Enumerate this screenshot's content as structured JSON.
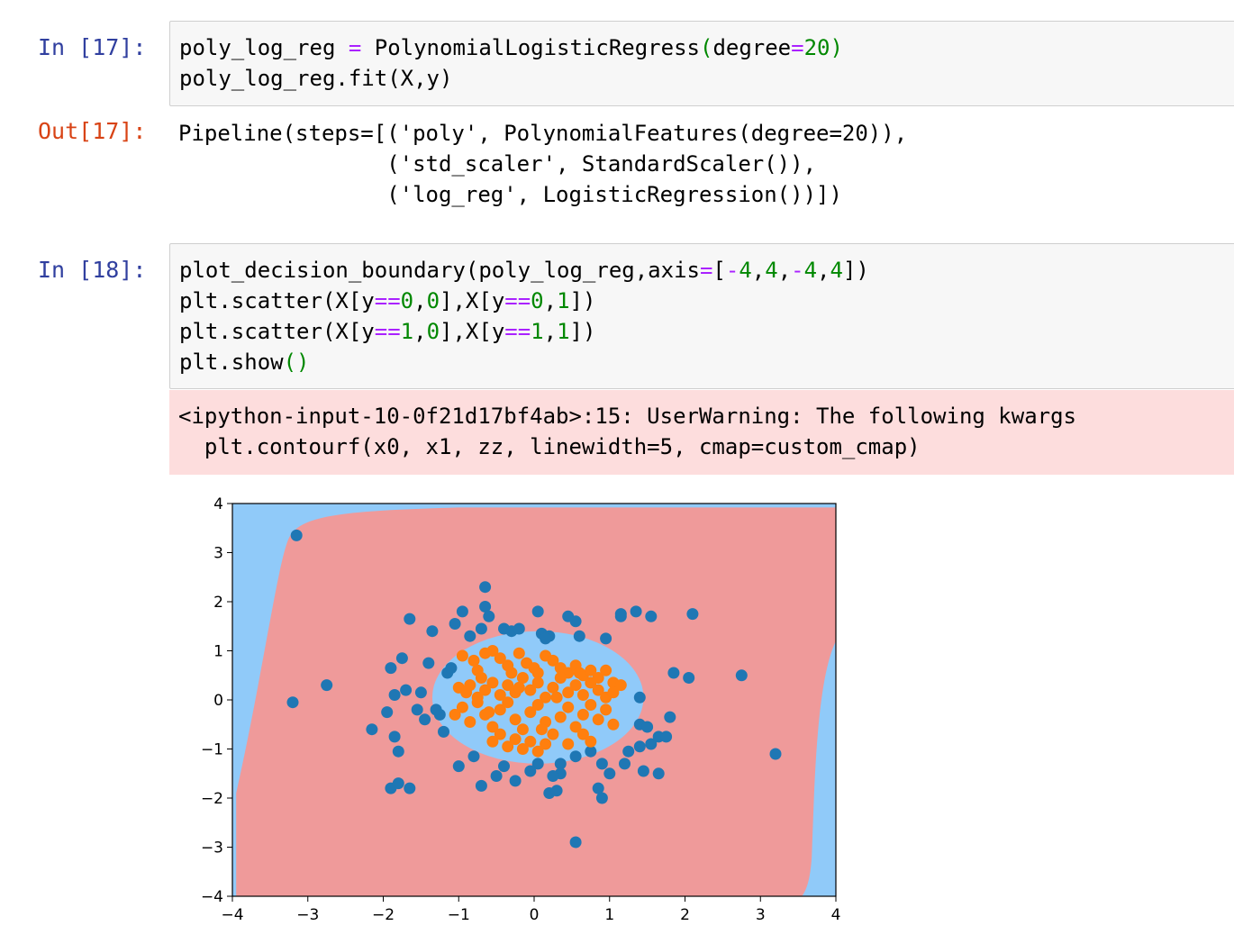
{
  "cells": {
    "in17": {
      "prompt": "In [17]:",
      "line1": {
        "a": "poly_log_reg ",
        "op": "=",
        "b": " PolynomialLogisticRegress",
        "p1": "(",
        "c": "degree",
        "op2": "=",
        "n": "20",
        "p2": ")"
      },
      "line2": "poly_log_reg.fit(X,y)"
    },
    "out17": {
      "prompt": "Out[17]:",
      "lines": [
        "Pipeline(steps=[('poly', PolynomialFeatures(degree=20)),",
        "                ('std_scaler', StandardScaler()),",
        "                ('log_reg', LogisticRegression())])"
      ]
    },
    "in18": {
      "prompt": "In [18]:",
      "l1": {
        "a": "plot_decision_boundary(poly_log_reg,axis",
        "op": "=",
        "b": "[",
        "m1": "-",
        "n1": "4",
        "c1": ",",
        "n2": "4",
        "c2": ",",
        "m2": "-",
        "n3": "4",
        "c3": ",",
        "n4": "4",
        "e": "])"
      },
      "l2": {
        "a": "plt.scatter(X[y",
        "op": "==",
        "n1": "0",
        "b": ",",
        "n2": "0",
        "c": "],X[y",
        "op2": "==",
        "n3": "0",
        "d": ",",
        "n4": "1",
        "e": "])"
      },
      "l3": {
        "a": "plt.scatter(X[y",
        "op": "==",
        "n1": "1",
        "b": ",",
        "n2": "0",
        "c": "],X[y",
        "op2": "==",
        "n3": "1",
        "d": ",",
        "n4": "1",
        "e": "])"
      },
      "l4": {
        "a": "plt.show",
        "p": "()"
      }
    },
    "stderr": {
      "line1": "<ipython-input-10-0f21d17bf4ab>:15: UserWarning: The following kwargs",
      "line2": "  plt.contourf(x0, x1, zz, linewidth=5, cmap=custom_cmap)"
    }
  },
  "colors": {
    "region0": "#EF9A9A",
    "region1": "#90CAF9",
    "class0": "#1f77b4",
    "class1": "#ff7f0e"
  },
  "chart_data": {
    "type": "scatter",
    "xlim": [
      -4,
      4
    ],
    "ylim": [
      -4,
      4
    ],
    "xticks": [
      "−4",
      "−3",
      "−2",
      "−1",
      "0",
      "1",
      "2",
      "3",
      "4"
    ],
    "yticks": [
      "4",
      "3",
      "2",
      "1",
      "0",
      "−1",
      "−2",
      "−3",
      "−4"
    ],
    "xlabel": "",
    "ylabel": "",
    "title": "",
    "background_region": "decision regions (red = class 0, blue = class 1)",
    "series": [
      {
        "points": [
          [
            -3.15,
            3.35
          ],
          [
            -3.2,
            -0.05
          ],
          [
            -2.75,
            0.3
          ],
          [
            -2.15,
            -0.6
          ],
          [
            -1.95,
            -0.25
          ],
          [
            -1.9,
            0.65
          ],
          [
            -1.85,
            0.1
          ],
          [
            -1.75,
            0.85
          ],
          [
            -1.7,
            0.2
          ],
          [
            -1.65,
            1.65
          ],
          [
            -1.55,
            -0.2
          ],
          [
            -1.5,
            0.15
          ],
          [
            -1.45,
            -0.4
          ],
          [
            -1.4,
            0.75
          ],
          [
            -1.35,
            1.4
          ],
          [
            -1.25,
            -0.3
          ],
          [
            -1.15,
            0.55
          ],
          [
            -1.1,
            0.65
          ],
          [
            -1.05,
            1.55
          ],
          [
            -0.95,
            1.8
          ],
          [
            -0.85,
            1.3
          ],
          [
            -0.7,
            1.45
          ],
          [
            -0.65,
            1.9
          ],
          [
            -0.6,
            1.7
          ],
          [
            -0.65,
            2.3
          ],
          [
            -0.4,
            1.45
          ],
          [
            -0.3,
            1.4
          ],
          [
            -0.2,
            1.45
          ],
          [
            0.05,
            1.8
          ],
          [
            0.1,
            1.35
          ],
          [
            0.2,
            1.3
          ],
          [
            0.45,
            1.7
          ],
          [
            0.55,
            1.6
          ],
          [
            0.6,
            1.3
          ],
          [
            0.95,
            1.25
          ],
          [
            1.15,
            1.7
          ],
          [
            1.15,
            1.75
          ],
          [
            1.35,
            1.8
          ],
          [
            1.55,
            1.7
          ],
          [
            2.1,
            1.75
          ],
          [
            1.85,
            0.55
          ],
          [
            2.05,
            0.45
          ],
          [
            2.75,
            0.5
          ],
          [
            1.8,
            -0.35
          ],
          [
            1.4,
            -0.5
          ],
          [
            1.5,
            -0.55
          ],
          [
            1.55,
            -0.9
          ],
          [
            1.65,
            -0.75
          ],
          [
            1.75,
            -0.75
          ],
          [
            1.25,
            -1.05
          ],
          [
            1.4,
            -0.95
          ],
          [
            1.2,
            -1.3
          ],
          [
            1.45,
            -1.45
          ],
          [
            1.65,
            -1.5
          ],
          [
            1.0,
            -1.5
          ],
          [
            0.9,
            -1.3
          ],
          [
            0.75,
            -1.05
          ],
          [
            0.55,
            -1.15
          ],
          [
            0.35,
            -1.3
          ],
          [
            0.35,
            -1.5
          ],
          [
            0.25,
            -1.55
          ],
          [
            0.05,
            -1.3
          ],
          [
            -0.05,
            -1.45
          ],
          [
            -0.25,
            -1.65
          ],
          [
            -0.5,
            -1.55
          ],
          [
            -0.7,
            -1.75
          ],
          [
            -0.4,
            -1.35
          ],
          [
            -0.8,
            -1.15
          ],
          [
            -1.0,
            -1.35
          ],
          [
            -1.2,
            -0.65
          ],
          [
            -1.3,
            -0.2
          ],
          [
            -1.9,
            -1.8
          ],
          [
            -1.8,
            -1.7
          ],
          [
            -1.65,
            -1.8
          ],
          [
            -1.8,
            -1.05
          ],
          [
            -1.85,
            -0.75
          ],
          [
            0.2,
            -1.9
          ],
          [
            0.3,
            -1.85
          ],
          [
            0.85,
            -1.8
          ],
          [
            0.9,
            -2.0
          ],
          [
            0.55,
            -2.9
          ],
          [
            3.2,
            -1.1
          ],
          [
            1.4,
            0.05
          ],
          [
            0.15,
            1.25
          ]
        ]
      },
      {
        "points": [
          [
            -0.95,
            0.9
          ],
          [
            -0.8,
            0.8
          ],
          [
            -0.75,
            0.6
          ],
          [
            -0.7,
            0.45
          ],
          [
            -0.65,
            0.95
          ],
          [
            -0.55,
            1.0
          ],
          [
            -0.45,
            0.85
          ],
          [
            -0.35,
            0.7
          ],
          [
            -0.3,
            0.55
          ],
          [
            -0.2,
            0.95
          ],
          [
            -0.1,
            0.75
          ],
          [
            0.0,
            0.65
          ],
          [
            0.05,
            0.55
          ],
          [
            0.15,
            0.9
          ],
          [
            0.25,
            0.8
          ],
          [
            0.35,
            0.65
          ],
          [
            0.45,
            0.55
          ],
          [
            0.55,
            0.7
          ],
          [
            0.65,
            0.5
          ],
          [
            0.75,
            0.6
          ],
          [
            0.85,
            0.45
          ],
          [
            0.95,
            0.6
          ],
          [
            1.05,
            0.35
          ],
          [
            -1.0,
            0.25
          ],
          [
            -0.9,
            0.15
          ],
          [
            -0.85,
            0.3
          ],
          [
            -0.75,
            0.05
          ],
          [
            -0.65,
            0.2
          ],
          [
            -0.55,
            0.35
          ],
          [
            -0.45,
            0.1
          ],
          [
            -0.35,
            0.3
          ],
          [
            -0.25,
            0.15
          ],
          [
            -0.15,
            0.45
          ],
          [
            -0.05,
            0.2
          ],
          [
            0.05,
            0.35
          ],
          [
            0.15,
            0.05
          ],
          [
            0.25,
            0.25
          ],
          [
            0.35,
            0.45
          ],
          [
            0.45,
            0.15
          ],
          [
            0.55,
            0.3
          ],
          [
            0.65,
            0.1
          ],
          [
            0.75,
            0.35
          ],
          [
            0.85,
            0.2
          ],
          [
            0.95,
            0.05
          ],
          [
            1.05,
            0.15
          ],
          [
            1.15,
            0.3
          ],
          [
            -1.05,
            -0.3
          ],
          [
            -0.95,
            -0.15
          ],
          [
            -0.85,
            -0.45
          ],
          [
            -0.75,
            -0.05
          ],
          [
            -0.65,
            -0.3
          ],
          [
            -0.55,
            -0.55
          ],
          [
            -0.45,
            -0.2
          ],
          [
            -0.35,
            -0.05
          ],
          [
            -0.25,
            -0.4
          ],
          [
            -0.15,
            -0.6
          ],
          [
            -0.05,
            -0.25
          ],
          [
            0.05,
            -0.1
          ],
          [
            0.15,
            -0.45
          ],
          [
            0.25,
            -0.7
          ],
          [
            0.35,
            -0.35
          ],
          [
            0.45,
            -0.15
          ],
          [
            0.55,
            -0.55
          ],
          [
            0.65,
            -0.3
          ],
          [
            0.75,
            -0.1
          ],
          [
            0.85,
            -0.4
          ],
          [
            0.95,
            -0.2
          ],
          [
            1.05,
            -0.5
          ],
          [
            -0.55,
            -0.85
          ],
          [
            -0.45,
            -0.7
          ],
          [
            -0.35,
            -0.95
          ],
          [
            -0.25,
            -0.8
          ],
          [
            -0.15,
            -1.0
          ],
          [
            -0.05,
            -0.85
          ],
          [
            0.05,
            -1.05
          ],
          [
            0.15,
            -0.9
          ],
          [
            0.45,
            -0.9
          ],
          [
            0.65,
            -0.7
          ],
          [
            0.75,
            -0.85
          ],
          [
            -0.2,
            0.25
          ],
          [
            0.1,
            -0.6
          ],
          [
            -0.6,
            -0.25
          ],
          [
            0.3,
            0.05
          ],
          [
            0.6,
            0.55
          ]
        ]
      }
    ]
  }
}
